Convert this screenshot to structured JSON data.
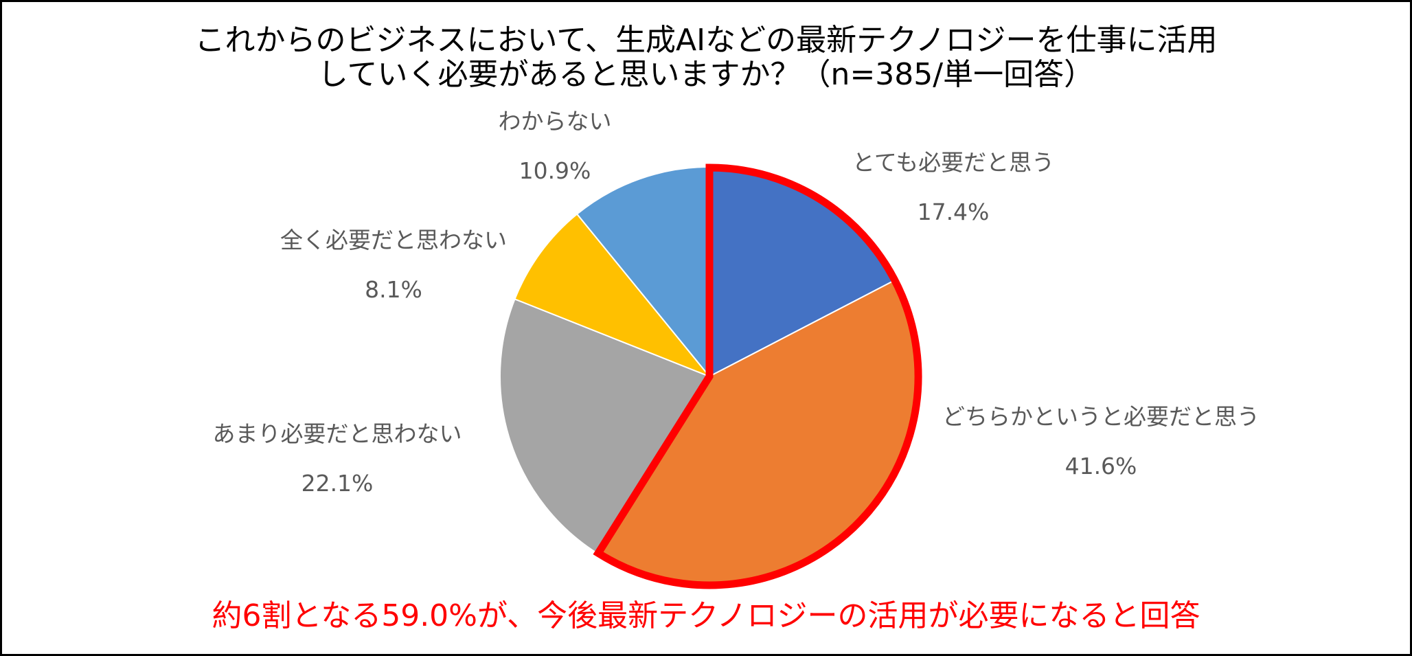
{
  "chart_data": {
    "type": "pie",
    "title_lines": [
      "これからのビジネスにおいて、生成AIなどの最新テクノロジーを仕事に活用",
      "していく必要があると思いますか？（n=385/単一回答）"
    ],
    "start_angle_deg": 0,
    "direction": "clockwise",
    "slices": [
      {
        "label": "とても必要だと思う",
        "value": 17.4,
        "value_label": "17.4%",
        "color": "#4472c4",
        "highlight": true
      },
      {
        "label": "どちらかというと必要だと思う",
        "value": 41.6,
        "value_label": "41.6%",
        "color": "#ed7d31",
        "highlight": true
      },
      {
        "label": "あまり必要だと思わない",
        "value": 22.1,
        "value_label": "22.1%",
        "color": "#a5a5a5",
        "highlight": false
      },
      {
        "label": "全く必要だと思わない",
        "value": 8.1,
        "value_label": "8.1%",
        "color": "#ffc000",
        "highlight": false
      },
      {
        "label": "わからない",
        "value": 10.9,
        "value_label": "10.9%",
        "color": "#5b9bd5",
        "highlight": false
      }
    ],
    "highlight_color": "#ff0000",
    "annotation": "約6割となる59.0%が、今後最新テクノロジーの活用が必要になると回答",
    "annotation_color": "#ff0000",
    "legend": "none"
  }
}
